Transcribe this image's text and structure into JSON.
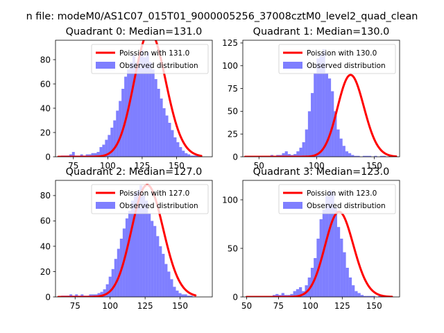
{
  "figure": {
    "suptitle": "n file: modeM0/AS1C07_015T01_9000005256_37008cztM0_level2_quad_clean"
  },
  "colors": {
    "poisson_line": "#ff0000",
    "observed_bars": "#0000ff",
    "axes": "#000000",
    "background": "#ffffff"
  },
  "chart_data": [
    {
      "type": "bar",
      "title": "Quadrant 0: Median=131.0",
      "median": 131,
      "xlim": [
        62,
        176
      ],
      "ylim": [
        0,
        96
      ],
      "xticks": [
        75,
        100,
        125,
        150
      ],
      "yticks": [
        0,
        20,
        40,
        60,
        80
      ],
      "bin_start": 66,
      "bin_width": 2,
      "values": [
        1,
        1,
        1,
        2,
        4,
        1,
        1,
        2,
        1,
        2,
        2,
        3,
        3,
        4,
        8,
        10,
        14,
        18,
        24,
        30,
        38,
        46,
        56,
        66,
        72,
        78,
        84,
        78,
        84,
        88,
        82,
        86,
        78,
        72,
        64,
        56,
        48,
        40,
        34,
        28,
        22,
        16,
        12,
        8,
        5,
        3,
        2,
        1,
        1,
        1
      ],
      "series": [
        {
          "name": "Poission with 131.0",
          "kind": "line",
          "mu": 131
        },
        {
          "name": "Observed distribution",
          "kind": "bar"
        }
      ],
      "legend": "top-right"
    },
    {
      "type": "bar",
      "title": "Quadrant 1: Median=130.0",
      "median": 130,
      "xlim": [
        36,
        172
      ],
      "ylim": [
        0,
        128
      ],
      "xticks": [
        50,
        100,
        150
      ],
      "yticks": [
        0,
        25,
        50,
        75,
        100,
        125
      ],
      "bin_start": 40,
      "bin_width": 2.5,
      "values": [
        1,
        0,
        1,
        1,
        1,
        1,
        1,
        1,
        2,
        1,
        2,
        2,
        4,
        6,
        3,
        2,
        3,
        6,
        10,
        16,
        30,
        50,
        70,
        92,
        108,
        112,
        118,
        92,
        86,
        72,
        50,
        30,
        20,
        12,
        6,
        4,
        2,
        1,
        1,
        0,
        1,
        1,
        1,
        0,
        1,
        0,
        1,
        1,
        0,
        1,
        1
      ],
      "series": [
        {
          "name": "Poission with 130.0",
          "kind": "line",
          "mu": 130
        },
        {
          "name": "Observed distribution",
          "kind": "bar"
        }
      ],
      "legend": "top-right"
    },
    {
      "type": "bar",
      "title": "Quadrant 2: Median=127.0",
      "median": 127,
      "xlim": [
        61,
        173
      ],
      "ylim": [
        0,
        92
      ],
      "xticks": [
        75,
        100,
        125,
        150
      ],
      "yticks": [
        0,
        20,
        40,
        60,
        80
      ],
      "bin_start": 65,
      "bin_width": 2,
      "values": [
        1,
        1,
        1,
        2,
        1,
        2,
        1,
        2,
        1,
        1,
        2,
        2,
        2,
        3,
        4,
        6,
        10,
        16,
        22,
        30,
        38,
        46,
        54,
        62,
        68,
        76,
        82,
        84,
        88,
        80,
        76,
        66,
        60,
        56,
        48,
        40,
        34,
        26,
        20,
        14,
        8,
        5,
        3,
        2,
        2,
        1,
        1
      ],
      "series": [
        {
          "name": "Poission with 127.0",
          "kind": "line",
          "mu": 127
        },
        {
          "name": "Observed distribution",
          "kind": "bar"
        }
      ],
      "legend": "top-right"
    },
    {
      "type": "bar",
      "title": "Quadrant 3: Median=123.0",
      "median": 123,
      "xlim": [
        47,
        170
      ],
      "ylim": [
        0,
        120
      ],
      "xticks": [
        50,
        75,
        100,
        125,
        150
      ],
      "yticks": [
        0,
        50,
        100
      ],
      "bin_start": 52,
      "bin_width": 2.3,
      "values": [
        1,
        0,
        1,
        1,
        1,
        1,
        1,
        1,
        2,
        3,
        2,
        4,
        2,
        2,
        3,
        6,
        8,
        10,
        6,
        12,
        20,
        30,
        40,
        60,
        80,
        90,
        104,
        110,
        108,
        92,
        72,
        60,
        46,
        30,
        20,
        12,
        6,
        4,
        2,
        1,
        1,
        1,
        1,
        0,
        1,
        1,
        1,
        1
      ],
      "series": [
        {
          "name": "Poission with 123.0",
          "kind": "line",
          "mu": 123
        },
        {
          "name": "Observed distribution",
          "kind": "bar"
        }
      ],
      "legend": "top-right"
    }
  ]
}
